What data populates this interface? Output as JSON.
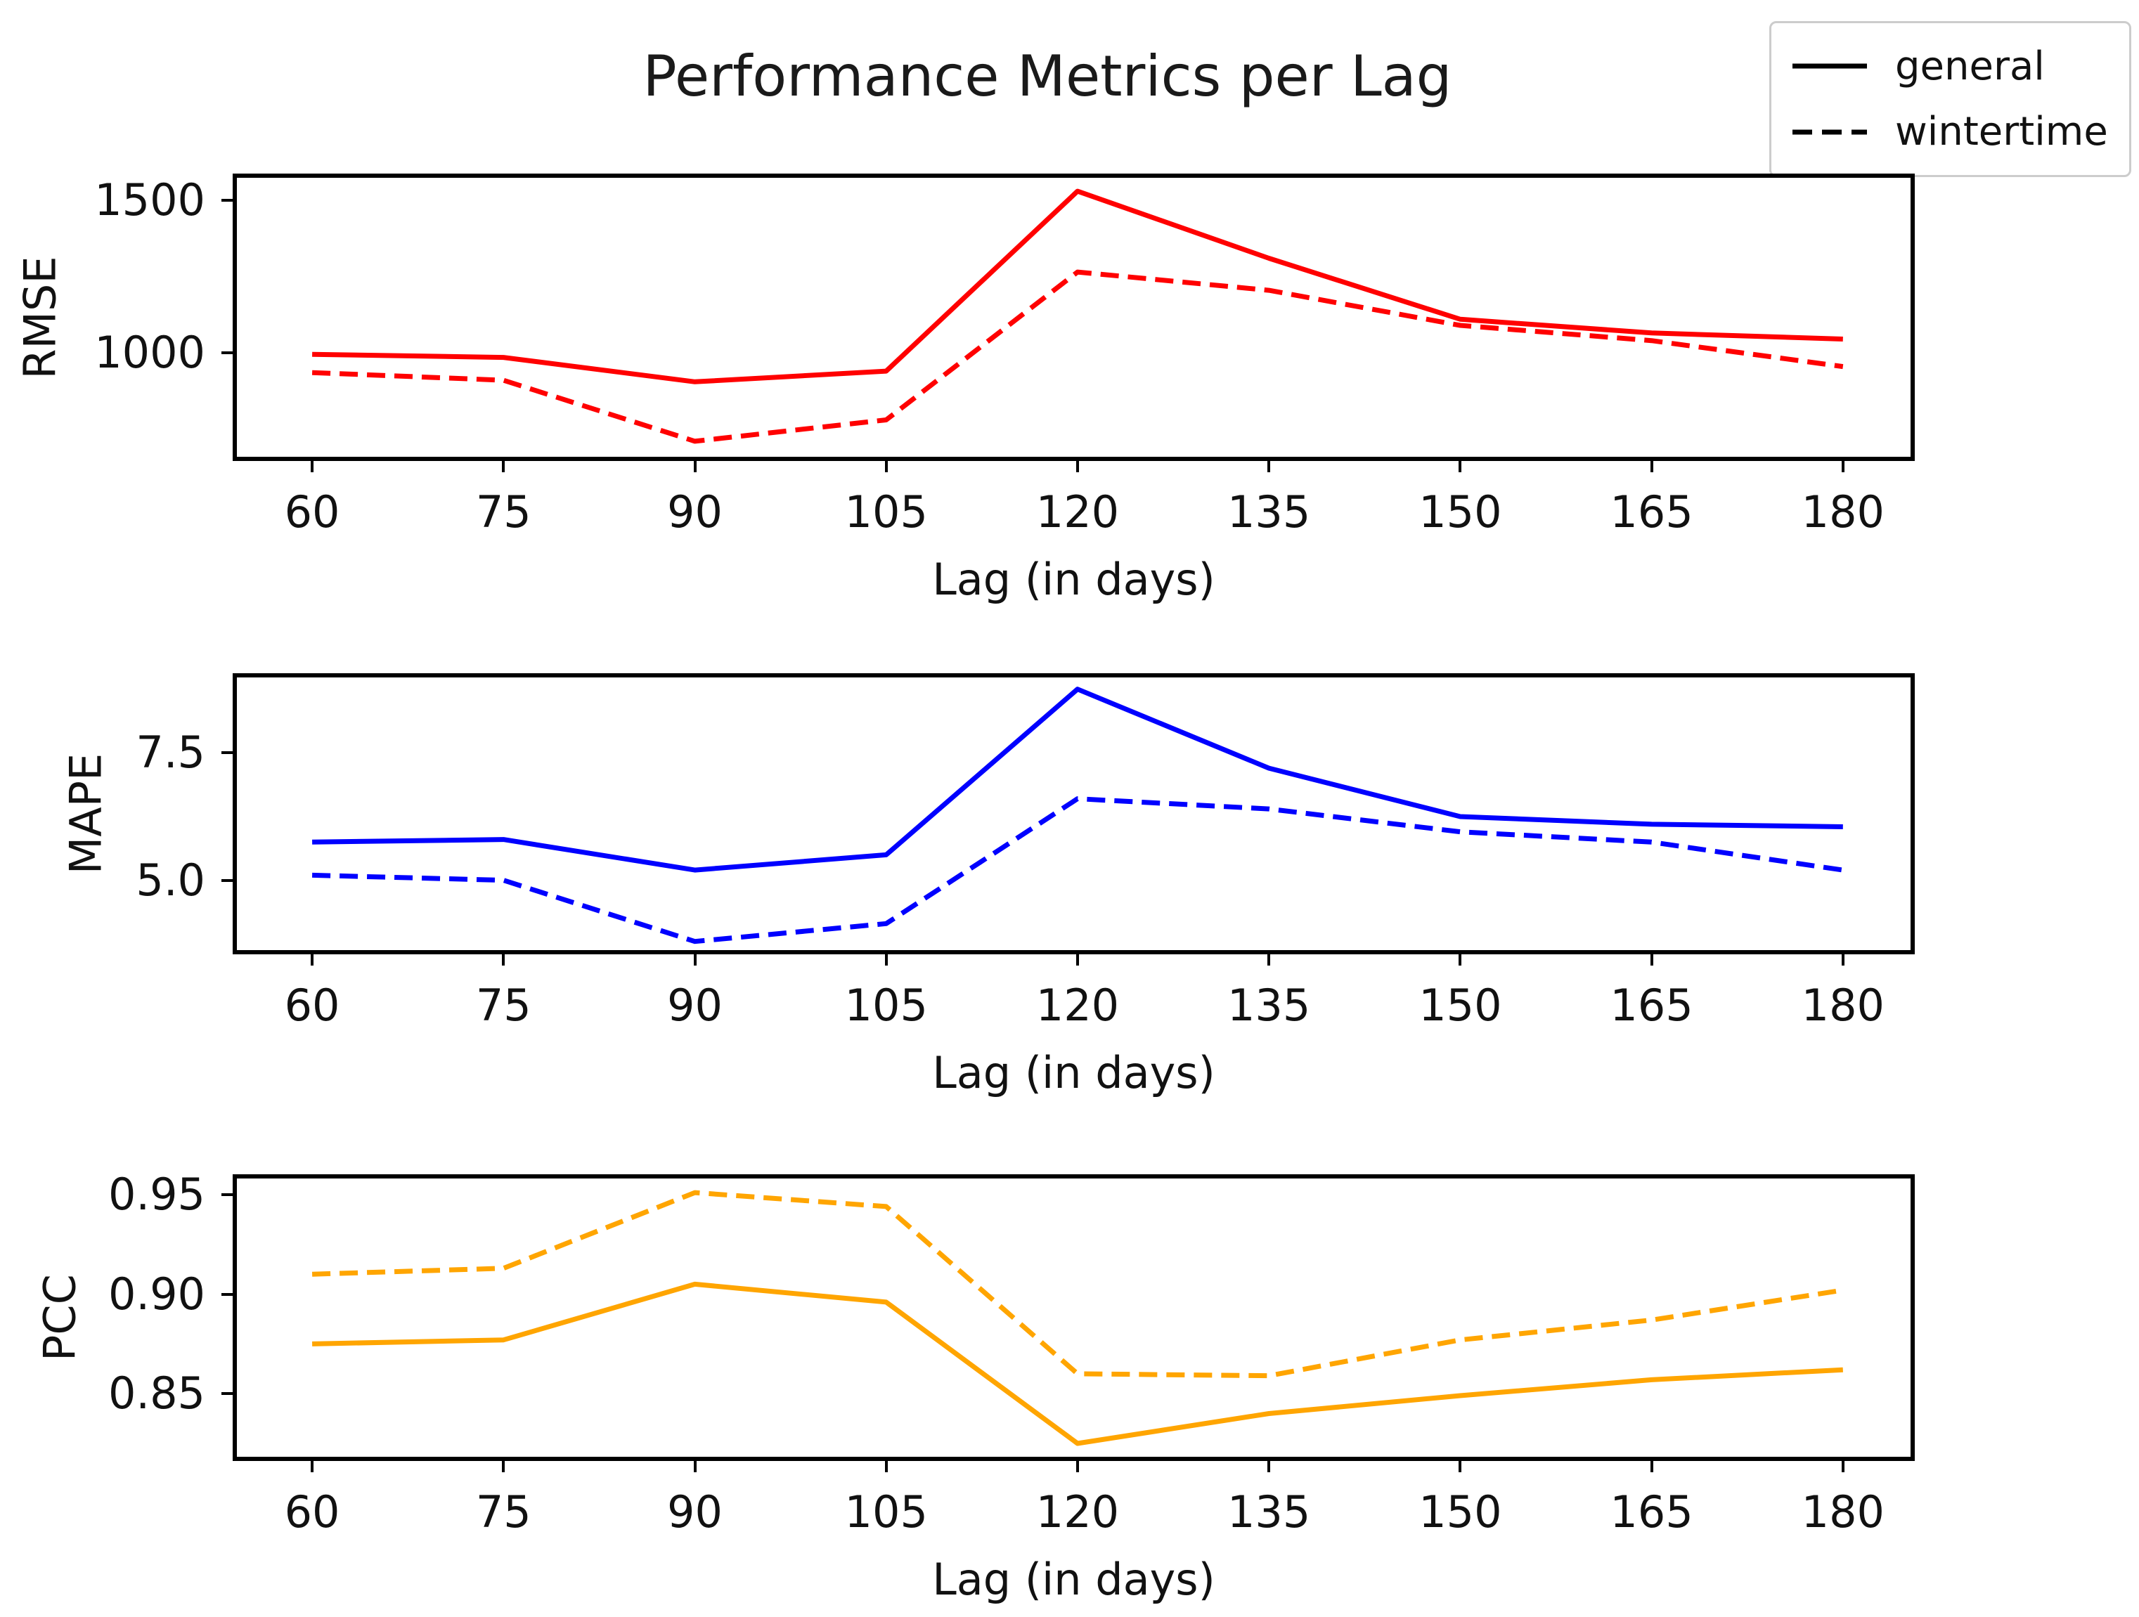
{
  "title": "Performance Metrics per Lag",
  "legend": {
    "position": "upper right",
    "items": [
      {
        "label": "general",
        "style": "solid"
      },
      {
        "label": "wintertime",
        "style": "dashed"
      }
    ]
  },
  "colors": {
    "rmse_line": "#ff0000",
    "mape_line": "#0000ff",
    "pcc_line": "#ffa500",
    "legend_line": "#000000",
    "axis": "#000000"
  },
  "chart_data": [
    {
      "type": "line",
      "ylabel": "RMSE",
      "xlabel": "Lag (in days)",
      "color": "#ff0000",
      "x": [
        60,
        75,
        90,
        105,
        120,
        135,
        150,
        165,
        180
      ],
      "x_ticks": [
        60,
        75,
        90,
        105,
        120,
        135,
        150,
        165,
        180
      ],
      "x_tick_labels": [
        "60",
        "75",
        "90",
        "105",
        "120",
        "135",
        "150",
        "165",
        "180"
      ],
      "y_ticks": [
        1000,
        1500
      ],
      "y_tick_labels": [
        "1000",
        "1500"
      ],
      "xlim": [
        54.1,
        185.3
      ],
      "ylim": [
        659,
        1574
      ],
      "grid": false,
      "series": [
        {
          "name": "general",
          "style": "solid",
          "values": [
            995,
            985,
            905,
            940,
            1530,
            1310,
            1110,
            1065,
            1045
          ]
        },
        {
          "name": "wintertime",
          "style": "dashed",
          "values": [
            935,
            910,
            710,
            780,
            1265,
            1205,
            1090,
            1040,
            955
          ]
        }
      ]
    },
    {
      "type": "line",
      "ylabel": "MAPE",
      "xlabel": "Lag (in days)",
      "color": "#0000ff",
      "x": [
        60,
        75,
        90,
        105,
        120,
        135,
        150,
        165,
        180
      ],
      "x_ticks": [
        60,
        75,
        90,
        105,
        120,
        135,
        150,
        165,
        180
      ],
      "x_tick_labels": [
        "60",
        "75",
        "90",
        "105",
        "120",
        "135",
        "150",
        "165",
        "180"
      ],
      "y_ticks": [
        5.0,
        7.5
      ],
      "y_tick_labels": [
        "5.0",
        "7.5"
      ],
      "xlim": [
        54.1,
        185.3
      ],
      "ylim": [
        3.63,
        8.98
      ],
      "grid": false,
      "series": [
        {
          "name": "general",
          "style": "solid",
          "values": [
            5.75,
            5.8,
            5.2,
            5.5,
            8.75,
            7.2,
            6.25,
            6.1,
            6.05
          ]
        },
        {
          "name": "wintertime",
          "style": "dashed",
          "values": [
            5.1,
            5.0,
            3.8,
            4.15,
            6.6,
            6.4,
            5.95,
            5.75,
            5.2
          ]
        }
      ]
    },
    {
      "type": "line",
      "ylabel": "PCC",
      "xlabel": "Lag (in days)",
      "color": "#ffa500",
      "x": [
        60,
        75,
        90,
        105,
        120,
        135,
        150,
        165,
        180
      ],
      "x_ticks": [
        60,
        75,
        90,
        105,
        120,
        135,
        150,
        165,
        180
      ],
      "x_tick_labels": [
        "60",
        "75",
        "90",
        "105",
        "120",
        "135",
        "150",
        "165",
        "180"
      ],
      "y_ticks": [
        0.85,
        0.9,
        0.95
      ],
      "y_tick_labels": [
        "0.85",
        "0.90",
        "0.95"
      ],
      "xlim": [
        54.1,
        185.3
      ],
      "ylim": [
        0.8183,
        0.9581
      ],
      "grid": false,
      "series": [
        {
          "name": "general",
          "style": "solid",
          "values": [
            0.875,
            0.877,
            0.905,
            0.896,
            0.825,
            0.84,
            0.849,
            0.857,
            0.862
          ]
        },
        {
          "name": "wintertime",
          "style": "dashed",
          "values": [
            0.91,
            0.913,
            0.951,
            0.944,
            0.86,
            0.859,
            0.877,
            0.887,
            0.902
          ]
        }
      ]
    }
  ]
}
